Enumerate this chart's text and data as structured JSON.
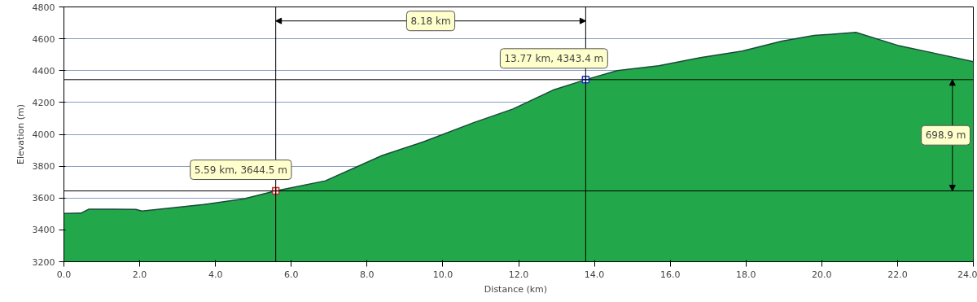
{
  "chart_data": {
    "type": "area",
    "xlabel": "Distance   (km)",
    "ylabel": "Elevation (m)",
    "x": [
      0,
      0.45,
      0.66,
      1.33,
      1.9,
      2.06,
      3.68,
      4.75,
      5.59,
      6.9,
      8.4,
      9.5,
      10.8,
      11.85,
      12.9,
      13.77,
      14.6,
      15.7,
      16.8,
      17.9,
      18.95,
      19.8,
      20.7,
      20.9,
      22.0,
      23.0,
      24.0
    ],
    "series": [
      {
        "color": "#22a84a",
        "values": [
          3503,
          3505,
          3530,
          3530,
          3528,
          3518,
          3559,
          3595,
          3645,
          3708,
          3867,
          3954,
          4072,
          4159,
          4277,
          4343,
          4400,
          4431,
          4482,
          4523,
          4585,
          4621,
          4636,
          4640,
          4559,
          4508,
          4456
        ]
      }
    ],
    "xlim": [
      0,
      24
    ],
    "ylim": [
      3200,
      4800
    ],
    "xticks": [
      {
        "value": 0,
        "label": "0.0"
      },
      {
        "value": 2,
        "label": "2.0"
      },
      {
        "value": 4,
        "label": "4.0"
      },
      {
        "value": 6,
        "label": "6.0"
      },
      {
        "value": 8,
        "label": "8.0"
      },
      {
        "value": 10,
        "label": "10.0"
      },
      {
        "value": 12,
        "label": "12.0"
      },
      {
        "value": 14,
        "label": "14.0"
      },
      {
        "value": 16,
        "label": "16.0"
      },
      {
        "value": 18,
        "label": "18.0"
      },
      {
        "value": 20,
        "label": "20.0"
      },
      {
        "value": 22,
        "label": "22.0"
      },
      {
        "value": 24,
        "label": "24.0"
      }
    ],
    "yticks": [
      3200,
      3400,
      3600,
      3800,
      4000,
      4200,
      4400,
      4600,
      4800
    ],
    "grid": "y",
    "ref_lines": [
      {
        "axis": "x",
        "value": 5.59,
        "color": "#000000"
      },
      {
        "axis": "x",
        "value": 13.77,
        "color": "#000000"
      },
      {
        "axis": "y",
        "value": 3644.5,
        "color": "#000000"
      },
      {
        "axis": "y",
        "value": 4343.4,
        "color": "#000000"
      }
    ],
    "annotations": [
      {
        "text": "5.59 km, 3644.5 m",
        "x": 5.59,
        "y": 3644.5
      },
      {
        "text": "13.77 km, 4343.4 m",
        "x": 13.77,
        "y": 4343.4
      },
      "8.18 km",
      "698.9 m"
    ]
  }
}
